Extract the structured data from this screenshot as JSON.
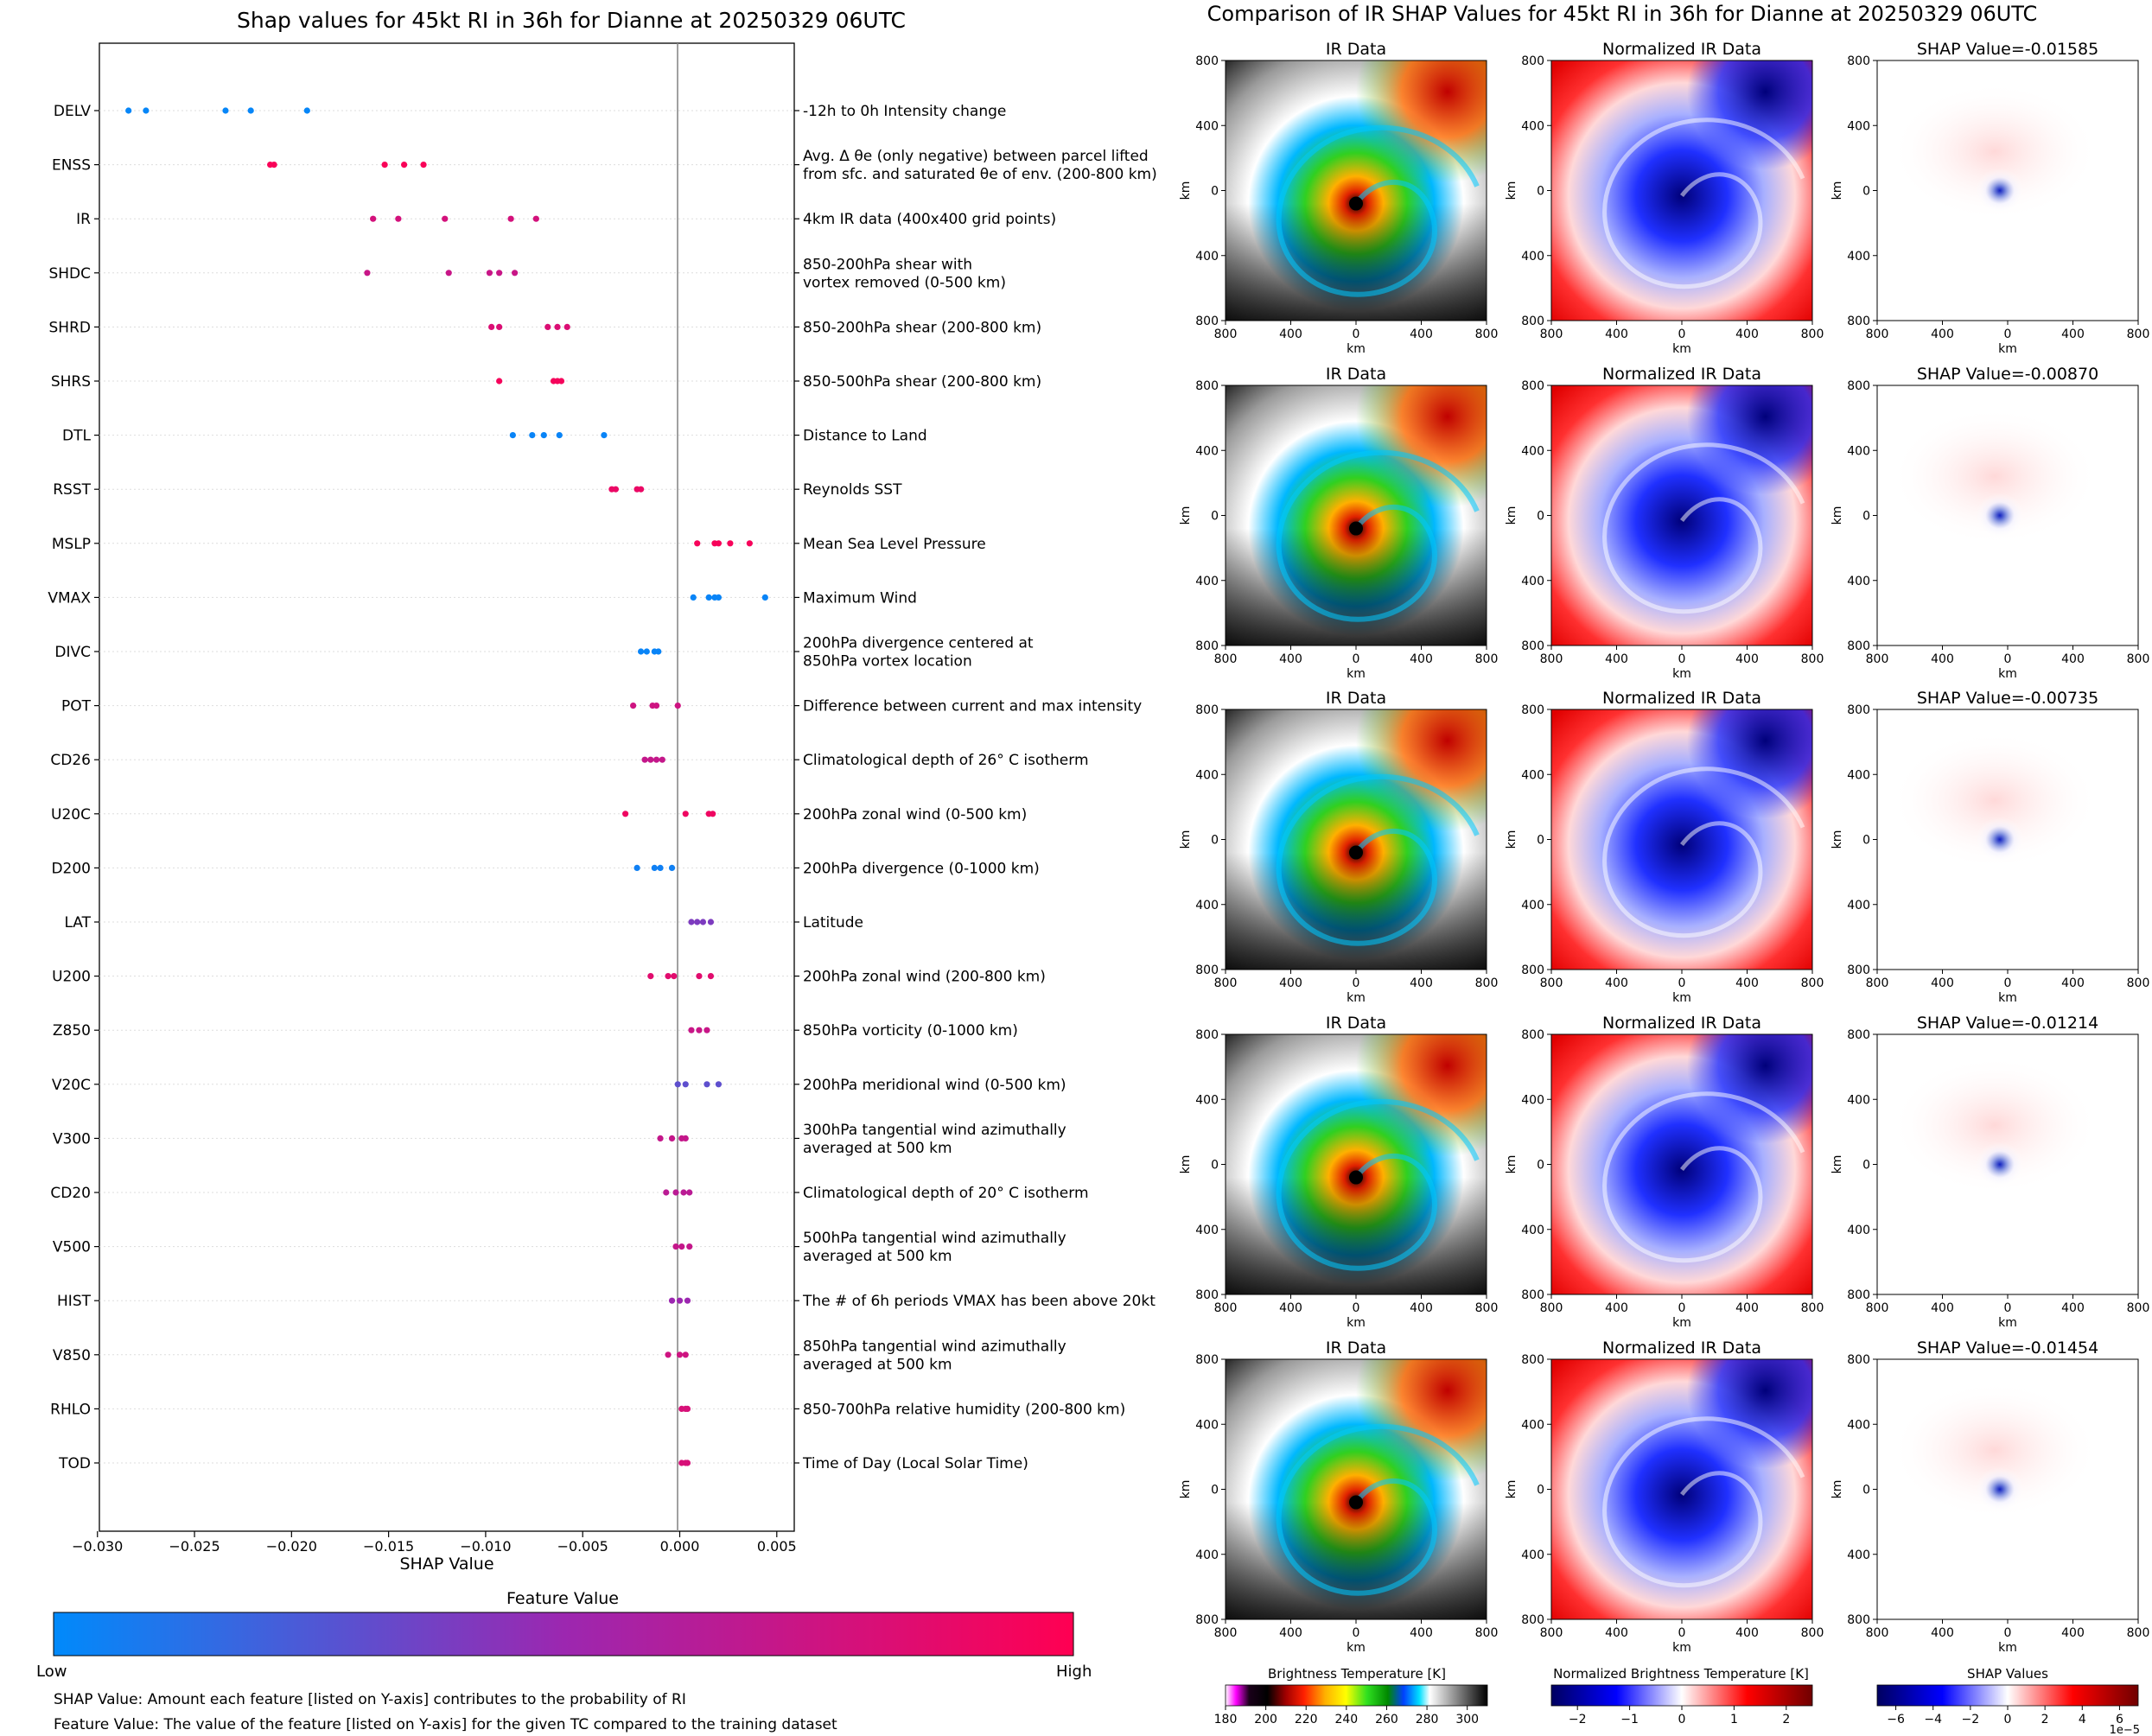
{
  "left_chart": {
    "title": "Shap values for 45kt RI in 36h for Dianne at 20250329 06UTC",
    "xlabel": "SHAP Value",
    "x_ticks": [
      "−0.030",
      "−0.025",
      "−0.020",
      "−0.015",
      "−0.010",
      "−0.005",
      "0.000",
      "0.005"
    ],
    "colorbar": {
      "title": "Feature Value",
      "low": "Low",
      "high": "High"
    },
    "footnote_1": "SHAP Value: Amount each feature [listed on Y-axis] contributes to the probability of RI",
    "footnote_2": "Feature Value: The value of the feature [listed on Y-axis] for the given TC compared to the training dataset"
  },
  "right_panel": {
    "title": "Comparison of IR SHAP Values for 45kt RI in 36h for Dianne at 20250329 06UTC",
    "col_titles": [
      "IR Data",
      "Normalized IR Data"
    ],
    "shap_titles": [
      "SHAP Value=-0.01585",
      "SHAP Value=-0.00870",
      "SHAP Value=-0.00735",
      "SHAP Value=-0.01214",
      "SHAP Value=-0.01454"
    ],
    "axis_label": "km",
    "x_ticks": [
      "800",
      "400",
      "0",
      "400",
      "800"
    ],
    "y_ticks": [
      "800",
      "400",
      "0",
      "400",
      "800"
    ],
    "cbar1": {
      "label": "Brightness Temperature [K]",
      "ticks": [
        "180",
        "200",
        "220",
        "240",
        "260",
        "280",
        "300"
      ]
    },
    "cbar2": {
      "label": "Normalized Brightness Temperature [K]",
      "ticks": [
        "−2",
        "−1",
        "0",
        "1",
        "2"
      ]
    },
    "cbar3": {
      "label": "SHAP Values",
      "ticks": [
        "−6",
        "−4",
        "−2",
        "0",
        "2",
        "4",
        "6"
      ],
      "multiplier": "1e−5"
    }
  },
  "chart_data": [
    {
      "type": "scatter",
      "title": "Shap values for 45kt RI in 36h for Dianne at 20250329 06UTC",
      "xlabel": "SHAP Value",
      "xlim": [
        -0.0299,
        0.0059
      ],
      "colormap": {
        "low": "#008afb",
        "mid": "#9c27b0",
        "high": "#ff0052",
        "low_label": "Low",
        "high_label": "High"
      },
      "features": [
        {
          "name": "DELV",
          "desc": [
            "-12h to 0h Intensity change"
          ],
          "values": [
            -0.0284,
            -0.0275,
            -0.0234,
            -0.0221,
            -0.0192
          ],
          "color_value": 0.02
        },
        {
          "name": "ENSS",
          "desc": [
            "Avg. Δ θe (only negative) between parcel lifted",
            "from sfc. and saturated θe of env. (200-800 km)"
          ],
          "values": [
            -0.0211,
            -0.0209,
            -0.0152,
            -0.0142,
            -0.0132
          ],
          "color_value": 0.97
        },
        {
          "name": "IR",
          "desc": [
            "4km IR data (400x400 grid points)"
          ],
          "values": [
            -0.0158,
            -0.0145,
            -0.0121,
            -0.0087,
            -0.0074
          ],
          "color_value": 0.78
        },
        {
          "name": "SHDC",
          "desc": [
            "850-200hPa shear with",
            "vortex removed (0-500 km)"
          ],
          "values": [
            -0.0161,
            -0.0119,
            -0.0098,
            -0.0093,
            -0.0085
          ],
          "color_value": 0.72
        },
        {
          "name": "SHRD",
          "desc": [
            "850-200hPa shear (200-800 km)"
          ],
          "values": [
            -0.0097,
            -0.0093,
            -0.0068,
            -0.0063,
            -0.0058
          ],
          "color_value": 0.82
        },
        {
          "name": "SHRS",
          "desc": [
            "850-500hPa shear (200-800 km)"
          ],
          "values": [
            -0.0093,
            -0.0065,
            -0.0063,
            -0.0061
          ],
          "color_value": 0.95
        },
        {
          "name": "DTL",
          "desc": [
            "Distance to Land"
          ],
          "values": [
            -0.0086,
            -0.0076,
            -0.007,
            -0.0062,
            -0.0039
          ],
          "color_value": 0.03
        },
        {
          "name": "RSST",
          "desc": [
            "Reynolds SST"
          ],
          "values": [
            -0.0035,
            -0.0033,
            -0.0022,
            -0.002
          ],
          "color_value": 0.9
        },
        {
          "name": "MSLP",
          "desc": [
            "Mean Sea Level Pressure"
          ],
          "values": [
            0.0009,
            0.0018,
            0.002,
            0.0026,
            0.0036
          ],
          "color_value": 0.96
        },
        {
          "name": "VMAX",
          "desc": [
            "Maximum Wind"
          ],
          "values": [
            0.0007,
            0.0015,
            0.0018,
            0.002,
            0.0044
          ],
          "color_value": 0.03
        },
        {
          "name": "DIVC",
          "desc": [
            "200hPa divergence centered at",
            "850hPa vortex location"
          ],
          "values": [
            -0.002,
            -0.0017,
            -0.0013,
            -0.0011
          ],
          "color_value": 0.03
        },
        {
          "name": "POT",
          "desc": [
            "Difference between current and max intensity"
          ],
          "values": [
            -0.0024,
            -0.0014,
            -0.0012,
            -0.0001
          ],
          "color_value": 0.75
        },
        {
          "name": "CD26",
          "desc": [
            "Climatological depth of 26° C isotherm"
          ],
          "values": [
            -0.0018,
            -0.0015,
            -0.0012,
            -0.0009
          ],
          "color_value": 0.7
        },
        {
          "name": "U20C",
          "desc": [
            "200hPa zonal wind (0-500 km)"
          ],
          "values": [
            -0.0028,
            0.0003,
            0.0015,
            0.0017
          ],
          "color_value": 0.92
        },
        {
          "name": "D200",
          "desc": [
            "200hPa divergence (0-1000 km)"
          ],
          "values": [
            -0.0022,
            -0.0013,
            -0.001,
            -0.0004
          ],
          "color_value": 0.05
        },
        {
          "name": "LAT",
          "desc": [
            "Latitude"
          ],
          "values": [
            0.0006,
            0.0009,
            0.0012,
            0.0016
          ],
          "color_value": 0.4
        },
        {
          "name": "U200",
          "desc": [
            "200hPa zonal wind (200-800 km)"
          ],
          "values": [
            -0.0015,
            -0.0006,
            -0.0003,
            0.001,
            0.0016
          ],
          "color_value": 0.85
        },
        {
          "name": "Z850",
          "desc": [
            "850hPa vorticity (0-1000 km)"
          ],
          "values": [
            0.0006,
            0.001,
            0.0014
          ],
          "color_value": 0.72
        },
        {
          "name": "V20C",
          "desc": [
            "200hPa meridional wind (0-500 km)"
          ],
          "values": [
            -0.0001,
            0.0003,
            0.0014,
            0.002
          ],
          "color_value": 0.3
        },
        {
          "name": "V300",
          "desc": [
            "300hPa tangential wind azimuthally",
            "averaged at 500 km"
          ],
          "values": [
            -0.001,
            -0.0004,
            0.0001,
            0.0003
          ],
          "color_value": 0.7
        },
        {
          "name": "CD20",
          "desc": [
            "Climatological depth of 20° C isotherm"
          ],
          "values": [
            -0.0007,
            -0.0002,
            0.0002,
            0.0005
          ],
          "color_value": 0.65
        },
        {
          "name": "V500",
          "desc": [
            "500hPa tangential wind azimuthally",
            "averaged at 500 km"
          ],
          "values": [
            -0.0002,
            0.0001,
            0.0005
          ],
          "color_value": 0.7
        },
        {
          "name": "HIST",
          "desc": [
            "The # of 6h periods VMAX has been above 20kt"
          ],
          "values": [
            -0.0004,
            0.0,
            0.0004
          ],
          "color_value": 0.5
        },
        {
          "name": "V850",
          "desc": [
            "850hPa tangential wind azimuthally",
            "averaged at 500 km"
          ],
          "values": [
            -0.0006,
            0.0,
            0.0003
          ],
          "color_value": 0.75
        },
        {
          "name": "RHLO",
          "desc": [
            "850-700hPa relative humidity (200-800 km)"
          ],
          "values": [
            0.0001,
            0.0003,
            0.0004
          ],
          "color_value": 0.8
        },
        {
          "name": "TOD",
          "desc": [
            "Time of Day (Local Solar Time)"
          ],
          "values": [
            0.0001,
            0.0003,
            0.0004
          ],
          "color_value": 0.8
        }
      ]
    },
    {
      "type": "heatmap",
      "title": "Comparison of IR SHAP Values for 45kt RI in 36h for Dianne at 20250329 06UTC",
      "rows": 5,
      "columns": [
        "IR Data",
        "Normalized IR Data",
        "SHAP"
      ],
      "shap_values": [
        -0.01585,
        -0.0087,
        -0.00735,
        -0.01214,
        -0.01454
      ],
      "axis_range_km": [
        -800,
        800
      ],
      "colorbars": [
        {
          "label": "Brightness Temperature [K]",
          "range": [
            180,
            310
          ]
        },
        {
          "label": "Normalized Brightness Temperature [K]",
          "range": [
            -2.5,
            2.5
          ]
        },
        {
          "label": "SHAP Values",
          "range": [
            -7,
            7
          ],
          "multiplier": "1e−5"
        }
      ]
    }
  ]
}
